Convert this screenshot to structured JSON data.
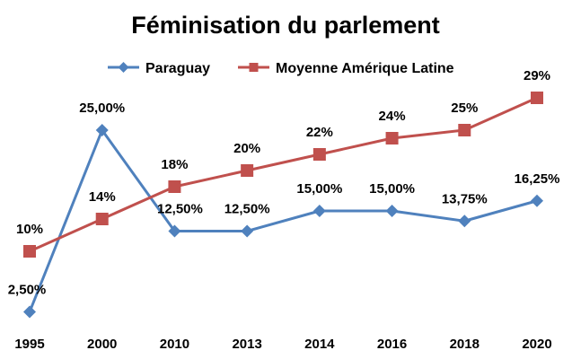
{
  "chart_data": {
    "type": "line",
    "title": "Féminisation du parlement",
    "categories": [
      "1995",
      "2000",
      "2010",
      "2013",
      "2014",
      "2016",
      "2018",
      "2020"
    ],
    "ylim": [
      0,
      30
    ],
    "grid": false,
    "legend_position": "top",
    "series": [
      {
        "name": "Paraguay",
        "color": "#4f81bd",
        "marker": "diamond",
        "values": [
          2.5,
          25.0,
          12.5,
          12.5,
          15.0,
          15.0,
          13.75,
          16.25
        ],
        "labels": [
          "2,50%",
          "25,00%",
          "12,50%",
          "12,50%",
          "15,00%",
          "15,00%",
          "13,75%",
          "16,25%"
        ]
      },
      {
        "name": "Moyenne Amérique Latine",
        "color": "#c0504d",
        "marker": "square",
        "values": [
          10,
          14,
          18,
          20,
          22,
          24,
          25,
          29
        ],
        "labels": [
          "10%",
          "14%",
          "18%",
          "20%",
          "22%",
          "24%",
          "25%",
          "29%"
        ]
      }
    ]
  }
}
